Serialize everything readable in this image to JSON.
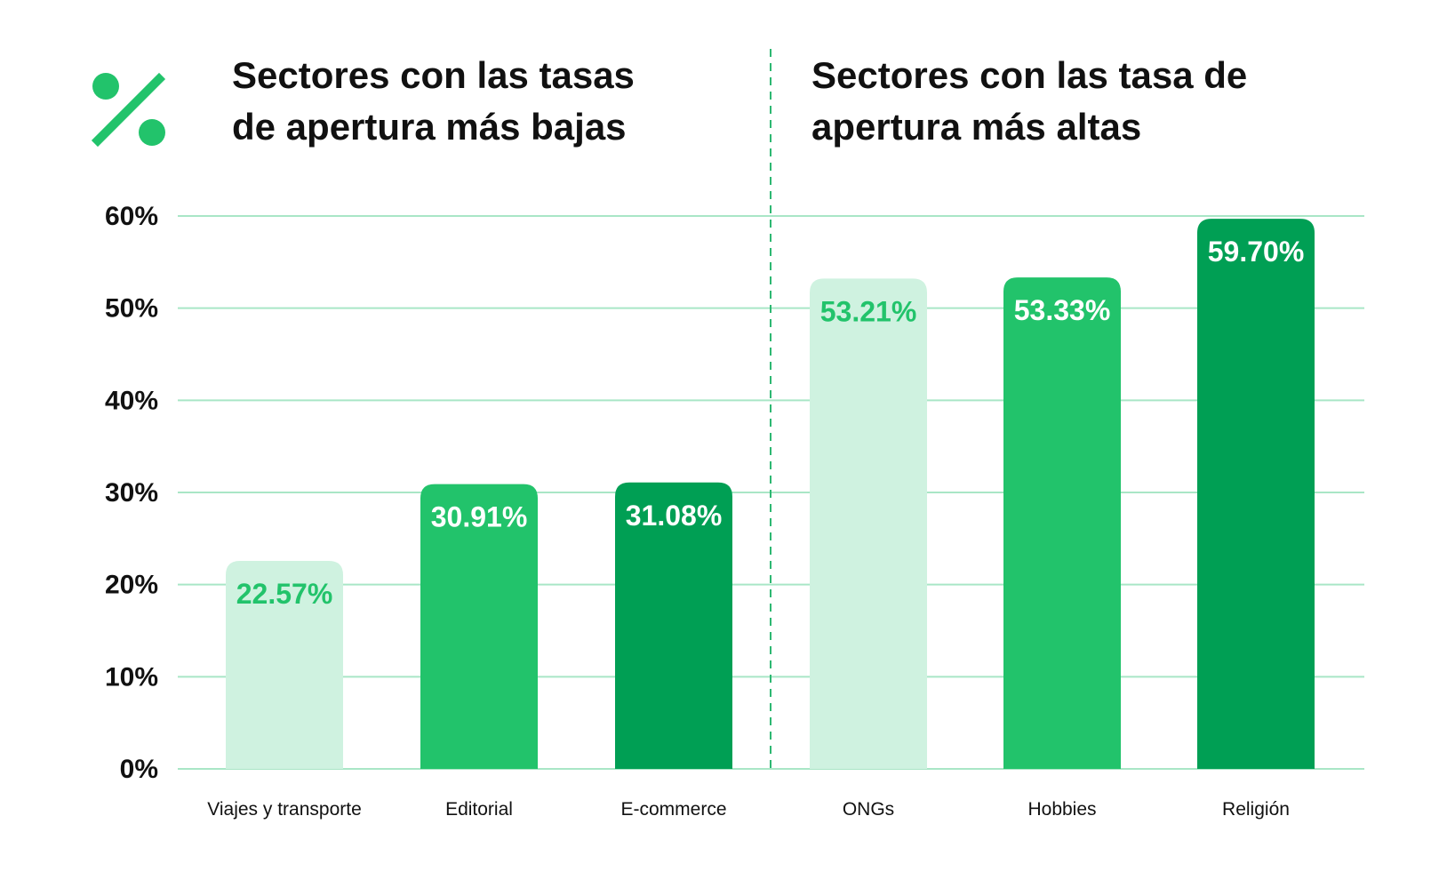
{
  "colors": {
    "accent": "#22c36b",
    "light": "#cff2e0",
    "mid": "#22c36b",
    "dark": "#009f54",
    "grid": "#a9e6c6",
    "divider": "#2eb872",
    "text": "#111111",
    "white": "#ffffff"
  },
  "header": {
    "icon": "percent-icon",
    "left_title_lines": [
      "Sectores con las tasas",
      "de apertura más bajas"
    ],
    "right_title_lines": [
      "Sectores con las tasa de",
      "apertura más altas"
    ]
  },
  "chart_data": {
    "type": "bar",
    "title": "",
    "xlabel": "",
    "ylabel": "",
    "ylim": [
      0,
      60
    ],
    "yticks": [
      0,
      10,
      20,
      30,
      40,
      50,
      60
    ],
    "ytick_labels": [
      "0%",
      "10%",
      "20%",
      "30%",
      "40%",
      "50%",
      "60%"
    ],
    "grid": true,
    "groups": [
      "Sectores con las tasas de apertura más bajas",
      "Sectores con las tasa de apertura más altas"
    ],
    "categories": [
      "Viajes y transporte",
      "Editorial",
      "E-commerce",
      "ONGs",
      "Hobbies",
      "Religión"
    ],
    "values": [
      22.57,
      30.91,
      31.08,
      53.21,
      53.33,
      59.7
    ],
    "value_labels": [
      "22.57%",
      "30.91%",
      "31.08%",
      "53.21%",
      "53.33%",
      "59.70%"
    ],
    "bar_shades": [
      "light",
      "mid",
      "dark",
      "light",
      "mid",
      "dark"
    ]
  }
}
